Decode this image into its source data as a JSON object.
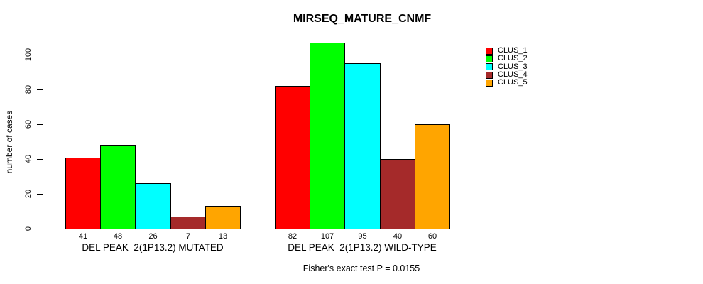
{
  "chart_data": {
    "type": "bar",
    "title": "MIRSEQ_MATURE_CNMF",
    "ylabel": "number of cases",
    "ylim": [
      0,
      110
    ],
    "yticks": [
      0,
      20,
      40,
      60,
      80,
      100
    ],
    "grid": false,
    "legend_position": "top-right-outside",
    "categories": [
      "DEL PEAK  2(1P13.2) MUTATED",
      "DEL PEAK  2(1P13.2) WILD-TYPE"
    ],
    "series": [
      {
        "name": "CLUS_1",
        "color": "#ff0000",
        "values": [
          41,
          82
        ]
      },
      {
        "name": "CLUS_2",
        "color": "#00ff00",
        "values": [
          48,
          107
        ]
      },
      {
        "name": "CLUS_3",
        "color": "#00ffff",
        "values": [
          26,
          95
        ]
      },
      {
        "name": "CLUS_4",
        "color": "#a52a2a",
        "values": [
          7,
          40
        ]
      },
      {
        "name": "CLUS_5",
        "color": "#ffa500",
        "values": [
          13,
          60
        ]
      }
    ],
    "bar_value_labels": [
      [
        41,
        48,
        26,
        7,
        13
      ],
      [
        82,
        107,
        95,
        40,
        60
      ]
    ],
    "annotation": "Fisher's exact test P = 0.0155"
  }
}
